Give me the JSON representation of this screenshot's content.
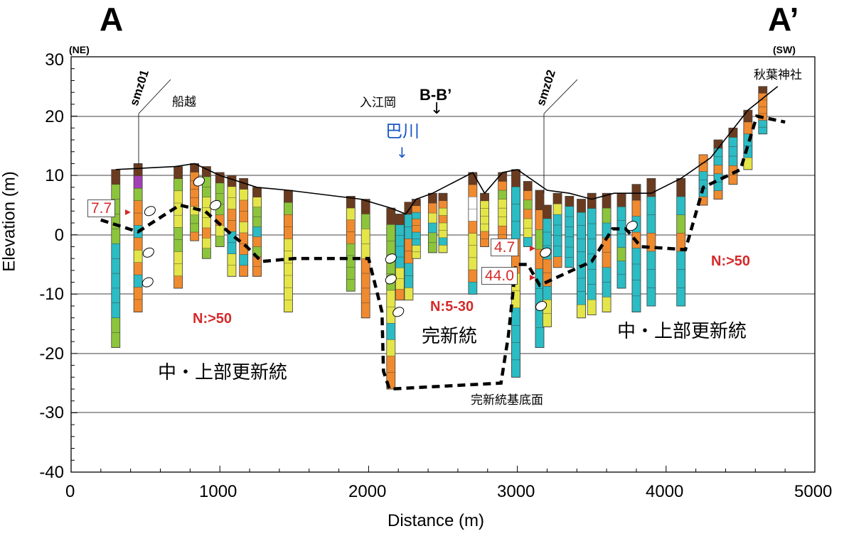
{
  "header": {
    "left_label": "A",
    "right_label": "A’",
    "left_direction": "(NE)",
    "right_direction": "(SW)"
  },
  "axes": {
    "xlabel": "Distance (m)",
    "ylabel": "Elevation (m)",
    "x_ticks": [
      "0",
      "1000",
      "2000",
      "3000",
      "4000",
      "5000"
    ],
    "y_ticks": [
      "30",
      "20",
      "10",
      "0",
      "-10",
      "-20",
      "-30",
      "-40"
    ]
  },
  "places": {
    "funakoshi": "船越",
    "iriegaoka": "入江岡",
    "akiba": "秋葉神社",
    "river": "巴川",
    "river_arrow": "↓",
    "section_marker": "B-B’",
    "section_arrow": "↓"
  },
  "wells": {
    "smz01": "smz01",
    "smz02": "smz02"
  },
  "annotations": {
    "n_gt50_left": "N:>50",
    "n_5_30": "N:5-30",
    "n_gt50_right": "N:>50",
    "holocene": "完新統",
    "pleistocene_left": "中・上部更新統",
    "pleistocene_right": "中・上部更新統",
    "holocene_base": "完新統基底面"
  },
  "n_value_boxes": {
    "v1": "7.7",
    "v2": "4.7",
    "v3": "44.0"
  },
  "chart_data": {
    "type": "cross-section",
    "xlabel": "Distance (m)",
    "ylabel": "Elevation (m)",
    "xlim": [
      0,
      5000
    ],
    "ylim": [
      -40,
      30
    ],
    "ground_surface": [
      [
        300,
        11
      ],
      [
        700,
        11.5
      ],
      [
        830,
        12
      ],
      [
        1000,
        10
      ],
      [
        1250,
        8
      ],
      [
        1460,
        7.5
      ],
      [
        1950,
        6
      ],
      [
        2150,
        4.5
      ],
      [
        2250,
        3.5
      ],
      [
        2320,
        6
      ],
      [
        2430,
        7
      ],
      [
        2700,
        10.5
      ],
      [
        2780,
        7
      ],
      [
        2900,
        10.5
      ],
      [
        3000,
        11
      ],
      [
        3200,
        7.5
      ],
      [
        3350,
        7
      ],
      [
        3500,
        6
      ],
      [
        3650,
        7
      ],
      [
        3900,
        7
      ],
      [
        4100,
        9.5
      ],
      [
        4300,
        13
      ],
      [
        4550,
        21
      ],
      [
        4750,
        25
      ]
    ],
    "holocene_base_line": [
      [
        200,
        2.5
      ],
      [
        450,
        0.5
      ],
      [
        730,
        5
      ],
      [
        900,
        4
      ],
      [
        1080,
        0
      ],
      [
        1180,
        -2
      ],
      [
        1280,
        -4.5
      ],
      [
        1500,
        -4
      ],
      [
        2000,
        -4
      ],
      [
        2090,
        -13
      ],
      [
        2100,
        -23
      ],
      [
        2140,
        -26
      ],
      [
        2890,
        -25
      ],
      [
        2940,
        -17
      ],
      [
        2990,
        -5
      ],
      [
        3070,
        -5
      ],
      [
        3150,
        -8.5
      ],
      [
        3500,
        -4.5
      ],
      [
        3640,
        1
      ],
      [
        3730,
        1
      ],
      [
        3830,
        -2
      ],
      [
        4130,
        -2.5
      ],
      [
        4250,
        8
      ],
      [
        4500,
        11
      ],
      [
        4610,
        20
      ],
      [
        4800,
        19
      ]
    ],
    "n_value_points": [
      {
        "distance": 370,
        "elevation": 4,
        "n_value": 7.7
      },
      {
        "distance": 3080,
        "elevation": -2,
        "n_value": 4.7
      },
      {
        "distance": 3080,
        "elevation": -7,
        "n_value": 44.0
      }
    ],
    "wells": [
      {
        "name": "smz01",
        "distance": 450
      },
      {
        "name": "smz02",
        "distance": 3200
      }
    ]
  }
}
